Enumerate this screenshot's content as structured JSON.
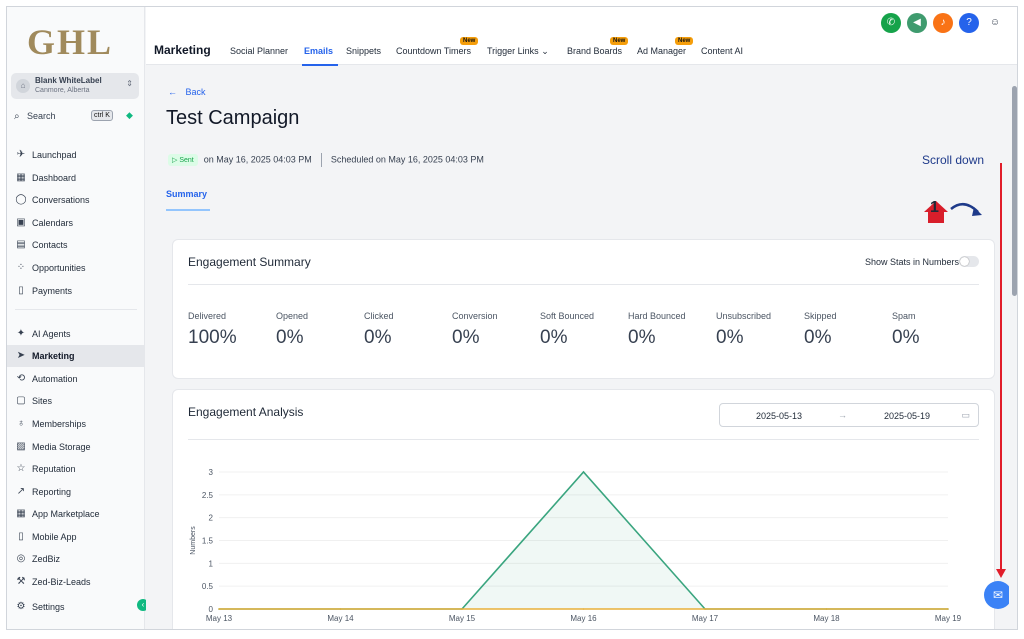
{
  "brand": {
    "logo": "GHL"
  },
  "account": {
    "name": "Blank WhiteLabel",
    "location": "Canmore, Alberta"
  },
  "search": {
    "label": "Search",
    "shortcut": "ctrl K"
  },
  "sidebar": {
    "items": [
      {
        "label": "Launchpad",
        "icon": "rocket-icon"
      },
      {
        "label": "Dashboard",
        "icon": "dashboard-icon"
      },
      {
        "label": "Conversations",
        "icon": "chat-icon"
      },
      {
        "label": "Calendars",
        "icon": "calendar-icon"
      },
      {
        "label": "Contacts",
        "icon": "contacts-icon"
      },
      {
        "label": "Opportunities",
        "icon": "opportunities-icon"
      },
      {
        "label": "Payments",
        "icon": "payments-icon"
      },
      {
        "label": "AI Agents",
        "icon": "ai-agents-icon"
      },
      {
        "label": "Marketing",
        "icon": "send-icon",
        "active": true
      },
      {
        "label": "Automation",
        "icon": "automation-icon"
      },
      {
        "label": "Sites",
        "icon": "sites-icon"
      },
      {
        "label": "Memberships",
        "icon": "award-icon"
      },
      {
        "label": "Media Storage",
        "icon": "image-icon"
      },
      {
        "label": "Reputation",
        "icon": "star-icon"
      },
      {
        "label": "Reporting",
        "icon": "trend-icon"
      },
      {
        "label": "App Marketplace",
        "icon": "grid-icon"
      },
      {
        "label": "Mobile App",
        "icon": "phone-icon"
      },
      {
        "label": "ZedBiz",
        "icon": "zedbiz-icon"
      },
      {
        "label": "Zed-Biz-Leads",
        "icon": "wrench-icon"
      },
      {
        "label": "Settings",
        "icon": "gear-icon"
      }
    ]
  },
  "topbar": {
    "module": "Marketing",
    "tabs": [
      {
        "label": "Social Planner"
      },
      {
        "label": "Emails",
        "active": true
      },
      {
        "label": "Snippets"
      },
      {
        "label": "Countdown Timers",
        "badge": "New"
      },
      {
        "label": "Trigger Links",
        "dropdown": true
      },
      {
        "label": "Brand Boards",
        "badge": "New"
      },
      {
        "label": "Ad Manager",
        "badge": "New"
      },
      {
        "label": "Content AI"
      }
    ],
    "icons": [
      {
        "name": "phone-icon",
        "color": "#16a34a"
      },
      {
        "name": "megaphone-icon",
        "color": "#3f9b6e"
      },
      {
        "name": "bell-icon",
        "color": "#f97316"
      },
      {
        "name": "help-icon",
        "color": "#2563eb"
      },
      {
        "name": "user-avatar-icon",
        "color": "#374151"
      }
    ]
  },
  "campaign": {
    "back_label": "Back",
    "title": "Test Campaign",
    "status_badge": "Sent",
    "sent_on": "on May 16, 2025 04:03 PM",
    "scheduled": "Scheduled on May 16, 2025 04:03 PM",
    "summary_tab": "Summary"
  },
  "annotation": {
    "scroll_note": "Scroll down",
    "step": "1"
  },
  "engagement_summary": {
    "title": "Engagement Summary",
    "toggle_label": "Show Stats in Numbers",
    "toggle_on": false,
    "stats": [
      {
        "label": "Delivered",
        "value": "100%"
      },
      {
        "label": "Opened",
        "value": "0%"
      },
      {
        "label": "Clicked",
        "value": "0%"
      },
      {
        "label": "Conversion",
        "value": "0%"
      },
      {
        "label": "Soft Bounced",
        "value": "0%"
      },
      {
        "label": "Hard Bounced",
        "value": "0%"
      },
      {
        "label": "Unsubscribed",
        "value": "0%"
      },
      {
        "label": "Skipped",
        "value": "0%"
      },
      {
        "label": "Spam",
        "value": "0%"
      }
    ]
  },
  "engagement_analysis": {
    "title": "Engagement Analysis",
    "date_from": "2025-05-13",
    "date_to": "2025-05-19"
  },
  "chart_data": {
    "type": "line",
    "title": "",
    "xlabel": "",
    "ylabel": "Numbers",
    "categories": [
      "May 13",
      "May 14",
      "May 15",
      "May 16",
      "May 17",
      "May 18",
      "May 19"
    ],
    "yticks": [
      "0",
      "0.5",
      "1",
      "1.5",
      "2",
      "2.5",
      "3"
    ],
    "ylim": [
      0,
      3
    ],
    "series": [
      {
        "values": [
          0,
          0,
          0,
          3,
          0,
          0,
          0
        ],
        "color": "#3aa57f",
        "filled": true
      },
      {
        "values": [
          0,
          0,
          0,
          0,
          0,
          0,
          0
        ],
        "color": "#e8b03a",
        "filled": false
      }
    ]
  }
}
